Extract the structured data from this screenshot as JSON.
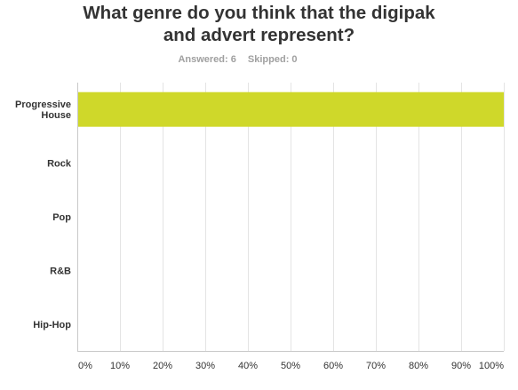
{
  "header": {
    "title_line1": "What genre do you think that the digipak",
    "title_line2": "and advert represent?",
    "answered": "Answered: 6",
    "skipped": "Skipped: 0"
  },
  "chart_data": {
    "type": "bar",
    "orientation": "horizontal",
    "categories": [
      [
        "Progressive",
        "House"
      ],
      [
        "Rock"
      ],
      [
        "Pop"
      ],
      [
        "R&B"
      ],
      [
        "Hip-Hop"
      ]
    ],
    "values": [
      100,
      0,
      0,
      0,
      0
    ],
    "xlim": [
      0,
      100
    ],
    "x_ticks": [
      "0%",
      "10%",
      "20%",
      "30%",
      "40%",
      "50%",
      "60%",
      "70%",
      "80%",
      "90%",
      "100%"
    ],
    "grid": true,
    "bar_color": "#cfd82a",
    "grid_color": "#e4e4e4",
    "axis_color": "#c8c8c8"
  }
}
